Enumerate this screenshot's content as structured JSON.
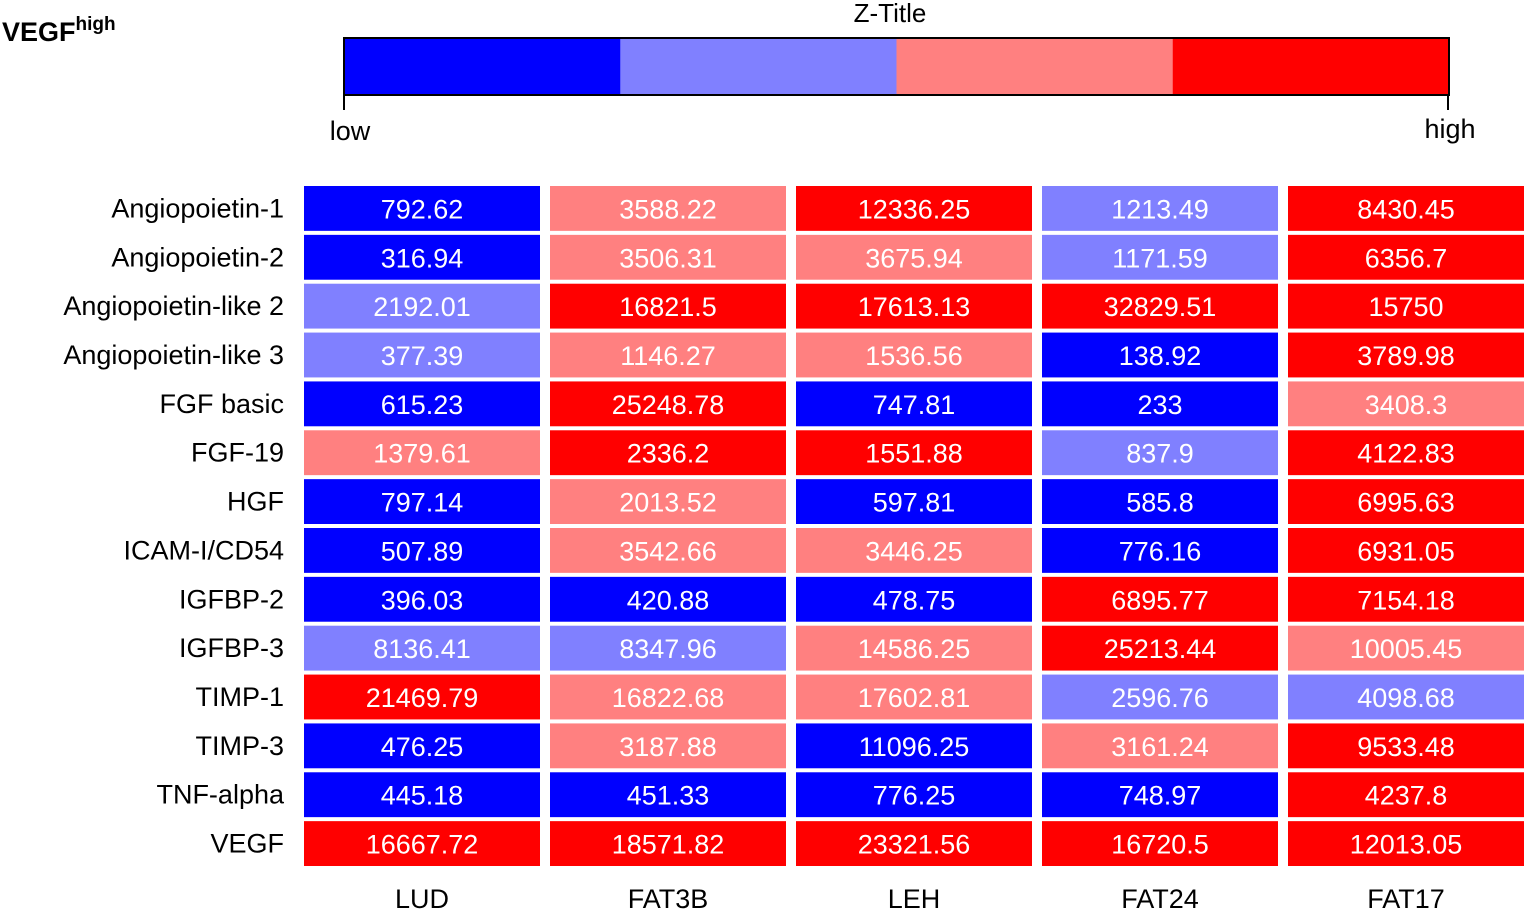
{
  "panel_title": {
    "main": "VEGF",
    "sup": "high"
  },
  "colorbar": {
    "title": "Z-Title",
    "low_label": "low",
    "high_label": "high",
    "colors": [
      "#0000ff",
      "#8080ff",
      "#ff8080",
      "#ff0000"
    ]
  },
  "chart_data": {
    "type": "heatmap",
    "title": "",
    "xlabel": "",
    "ylabel": "",
    "columns": [
      "LUD",
      "FAT3B",
      "LEH",
      "FAT24",
      "FAT17"
    ],
    "rows": [
      "Angiopoietin-1",
      "Angiopoietin-2",
      "Angiopoietin-like 2",
      "Angiopoietin-like 3",
      "FGF basic",
      "FGF-19",
      "HGF",
      "ICAM-I/CD54",
      "IGFBP-2",
      "IGFBP-3",
      "TIMP-1",
      "TIMP-3",
      "TNF-alpha",
      "VEGF"
    ],
    "values": [
      [
        "792.62",
        "3588.22",
        "12336.25",
        "1213.49",
        "8430.45"
      ],
      [
        "316.94",
        "3506.31",
        "3675.94",
        "1171.59",
        "6356.7"
      ],
      [
        "2192.01",
        "16821.5",
        "17613.13",
        "32829.51",
        "15750"
      ],
      [
        "377.39",
        "1146.27",
        "1536.56",
        "138.92",
        "3789.98"
      ],
      [
        "615.23",
        "25248.78",
        "747.81",
        "233",
        "3408.3"
      ],
      [
        "1379.61",
        "2336.2",
        "1551.88",
        "837.9",
        "4122.83"
      ],
      [
        "797.14",
        "2013.52",
        "597.81",
        "585.8",
        "6995.63"
      ],
      [
        "507.89",
        "3542.66",
        "3446.25",
        "776.16",
        "6931.05"
      ],
      [
        "396.03",
        "420.88",
        "478.75",
        "6895.77",
        "7154.18"
      ],
      [
        "8136.41",
        "8347.96",
        "14586.25",
        "25213.44",
        "10005.45"
      ],
      [
        "21469.79",
        "16822.68",
        "17602.81",
        "2596.76",
        "4098.68"
      ],
      [
        "476.25",
        "3187.88",
        "11096.25",
        "3161.24",
        "9533.48"
      ],
      [
        "445.18",
        "451.33",
        "776.25",
        "748.97",
        "4237.8"
      ],
      [
        "16667.72",
        "18571.82",
        "23321.56",
        "16720.5",
        "12013.05"
      ]
    ],
    "levels": [
      [
        0,
        2,
        3,
        1,
        3
      ],
      [
        0,
        2,
        2,
        1,
        3
      ],
      [
        1,
        3,
        3,
        3,
        3
      ],
      [
        1,
        2,
        2,
        0,
        3
      ],
      [
        0,
        3,
        0,
        0,
        2
      ],
      [
        2,
        3,
        3,
        1,
        3
      ],
      [
        0,
        2,
        0,
        0,
        3
      ],
      [
        0,
        2,
        2,
        0,
        3
      ],
      [
        0,
        0,
        0,
        3,
        3
      ],
      [
        1,
        1,
        2,
        3,
        2
      ],
      [
        3,
        2,
        2,
        1,
        1
      ],
      [
        0,
        2,
        0,
        2,
        3
      ],
      [
        0,
        0,
        0,
        0,
        3
      ],
      [
        3,
        3,
        3,
        3,
        3
      ]
    ]
  }
}
